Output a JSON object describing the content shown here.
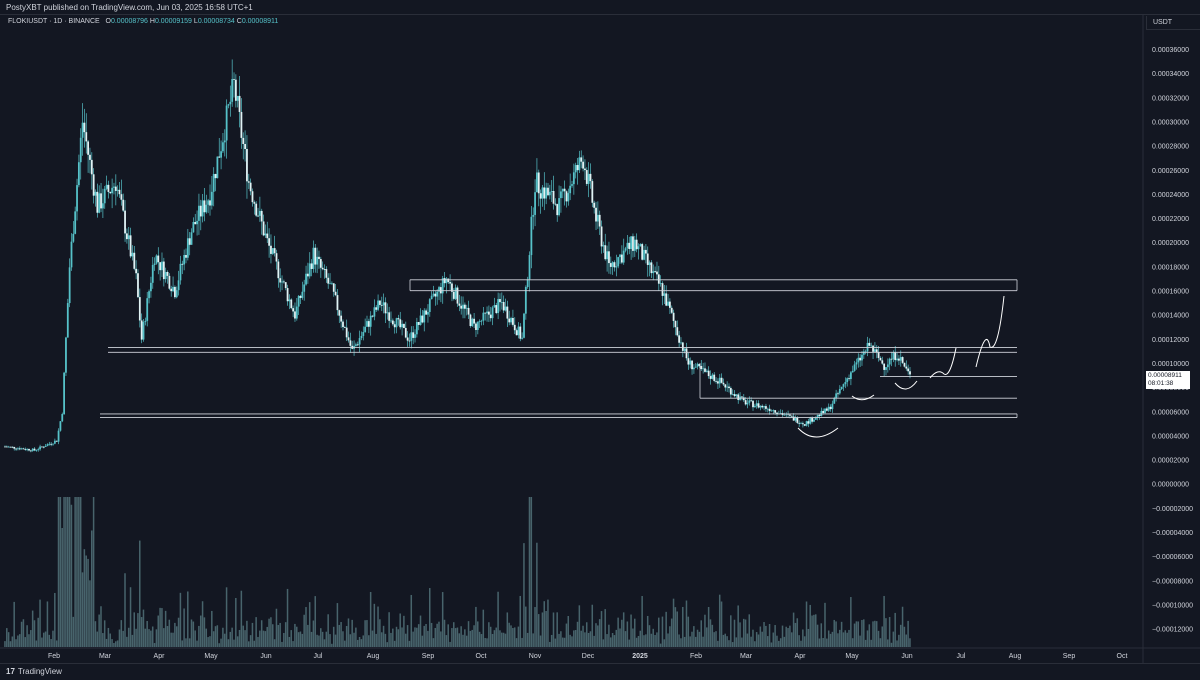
{
  "header": {
    "attribution": "PostyXBT published on TradingView.com, Jun 03, 2025 16:58 UTC+1"
  },
  "legend": {
    "symbol": "FLOKIUSDT · 1D · BINANCE",
    "open_label": "O",
    "open_value": "0.00008796",
    "high_label": "H",
    "high_value": "0.00009159",
    "low_label": "L",
    "low_value": "0.00008734",
    "close_label": "C",
    "close_value": "0.00008911"
  },
  "currency": "USDT",
  "last_price": {
    "value": "0.00008911",
    "countdown": "08:01:38"
  },
  "footer": {
    "brand": "TradingView",
    "logo": "17"
  },
  "colors": {
    "background": "#131722",
    "candle": "#56c2c9",
    "volume": "#5b7f85",
    "lines": "#d1d4dc"
  },
  "chart_data": {
    "type": "candlestick",
    "y_ticks": [
      "0.00036000",
      "0.00034000",
      "0.00032000",
      "0.00030000",
      "0.00028000",
      "0.00026000",
      "0.00024000",
      "0.00022000",
      "0.00020000",
      "0.00018000",
      "0.00016000",
      "0.00014000",
      "0.00012000",
      "0.00010000",
      "0.00008000",
      "0.00006000",
      "0.00004000",
      "0.00002000",
      "0.00000000",
      "−0.00002000",
      "−0.00004000",
      "−0.00006000",
      "−0.00008000",
      "−0.00010000",
      "−0.00012000"
    ],
    "x_ticks": [
      "Feb",
      "Mar",
      "Apr",
      "May",
      "Jun",
      "Jul",
      "Aug",
      "Sep",
      "Oct",
      "Nov",
      "Dec",
      "2025",
      "Feb",
      "Mar",
      "Apr",
      "May",
      "Jun",
      "Jul",
      "Aug",
      "Sep",
      "Oct"
    ],
    "price_path": [
      [
        "2024-01-30",
        3.1e-05
      ],
      [
        "2024-02-15",
        2.8e-05
      ],
      [
        "2024-02-27",
        3.6e-05
      ],
      [
        "2024-03-01",
        6e-05
      ],
      [
        "2024-03-05",
        0.00018
      ],
      [
        "2024-03-12",
        0.0003
      ],
      [
        "2024-03-20",
        0.00023
      ],
      [
        "2024-03-30",
        0.00025
      ],
      [
        "2024-04-10",
        0.00017
      ],
      [
        "2024-04-13",
        0.00012
      ],
      [
        "2024-04-20",
        0.00019
      ],
      [
        "2024-05-01",
        0.00016
      ],
      [
        "2024-05-10",
        0.00021
      ],
      [
        "2024-05-20",
        0.00024
      ],
      [
        "2024-06-02",
        0.00033
      ],
      [
        "2024-06-10",
        0.00025
      ],
      [
        "2024-06-20",
        0.0002
      ],
      [
        "2024-07-05",
        0.00014
      ],
      [
        "2024-07-15",
        0.00019
      ],
      [
        "2024-07-25",
        0.00016
      ],
      [
        "2024-08-05",
        0.00011
      ],
      [
        "2024-08-20",
        0.00015
      ],
      [
        "2024-09-05",
        0.00012
      ],
      [
        "2024-09-25",
        0.00017
      ],
      [
        "2024-10-10",
        0.00013
      ],
      [
        "2024-10-25",
        0.00015
      ],
      [
        "2024-11-05",
        0.00012
      ],
      [
        "2024-11-12",
        0.00025
      ],
      [
        "2024-11-25",
        0.00023
      ],
      [
        "2024-12-08",
        0.00027
      ],
      [
        "2024-12-15",
        0.00022
      ],
      [
        "2024-12-22",
        0.00018
      ],
      [
        "2025-01-05",
        0.0002
      ],
      [
        "2025-01-20",
        0.00016
      ],
      [
        "2025-02-03",
        0.0001
      ],
      [
        "2025-02-20",
        8.5e-05
      ],
      [
        "2025-03-05",
        6.8e-05
      ],
      [
        "2025-03-20",
        6.2e-05
      ],
      [
        "2025-04-07",
        5e-05
      ],
      [
        "2025-04-20",
        6.2e-05
      ],
      [
        "2025-05-01",
        9e-05
      ],
      [
        "2025-05-12",
        0.000115
      ],
      [
        "2025-05-20",
        9.8e-05
      ],
      [
        "2025-05-27",
        0.000108
      ],
      [
        "2025-06-03",
        8.9e-05
      ]
    ],
    "horizontal_levels": [
      0.000169,
      0.00016,
      0.000113,
      0.000109,
      8.9e-05,
      7.1e-05,
      5.8e-05,
      5.5e-05
    ]
  }
}
